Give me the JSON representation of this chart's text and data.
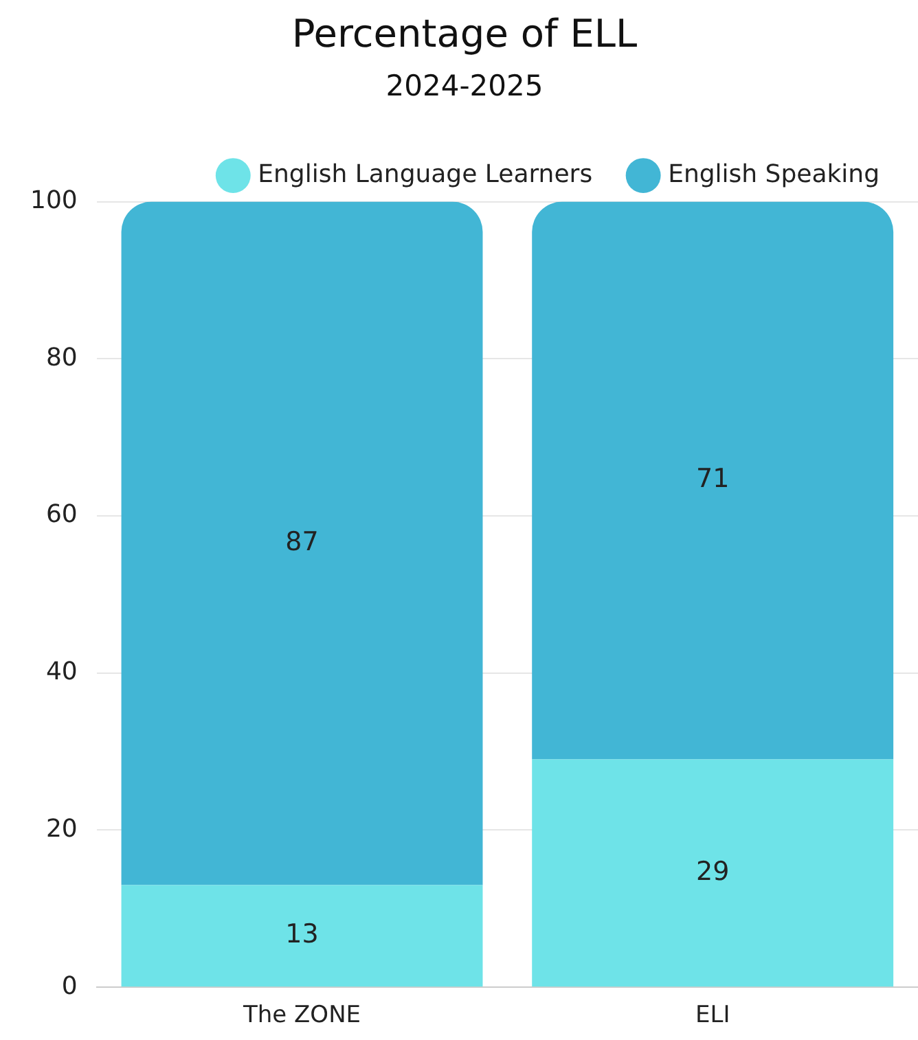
{
  "chart_data": {
    "type": "bar",
    "title": "Percentage of ELL",
    "subtitle": "2024-2025",
    "categories": [
      "The ZONE",
      "ELI"
    ],
    "stacked": true,
    "series": [
      {
        "name": "English Language Learners",
        "color": "#6ee3e8",
        "values": [
          13,
          29
        ]
      },
      {
        "name": "English Speaking",
        "color": "#42b6d5",
        "values": [
          87,
          71
        ]
      }
    ],
    "ylim": [
      0,
      100
    ],
    "yticks": [
      0,
      20,
      40,
      60,
      80,
      100
    ],
    "grid": "y",
    "legend": "top right",
    "data_labels": true
  }
}
